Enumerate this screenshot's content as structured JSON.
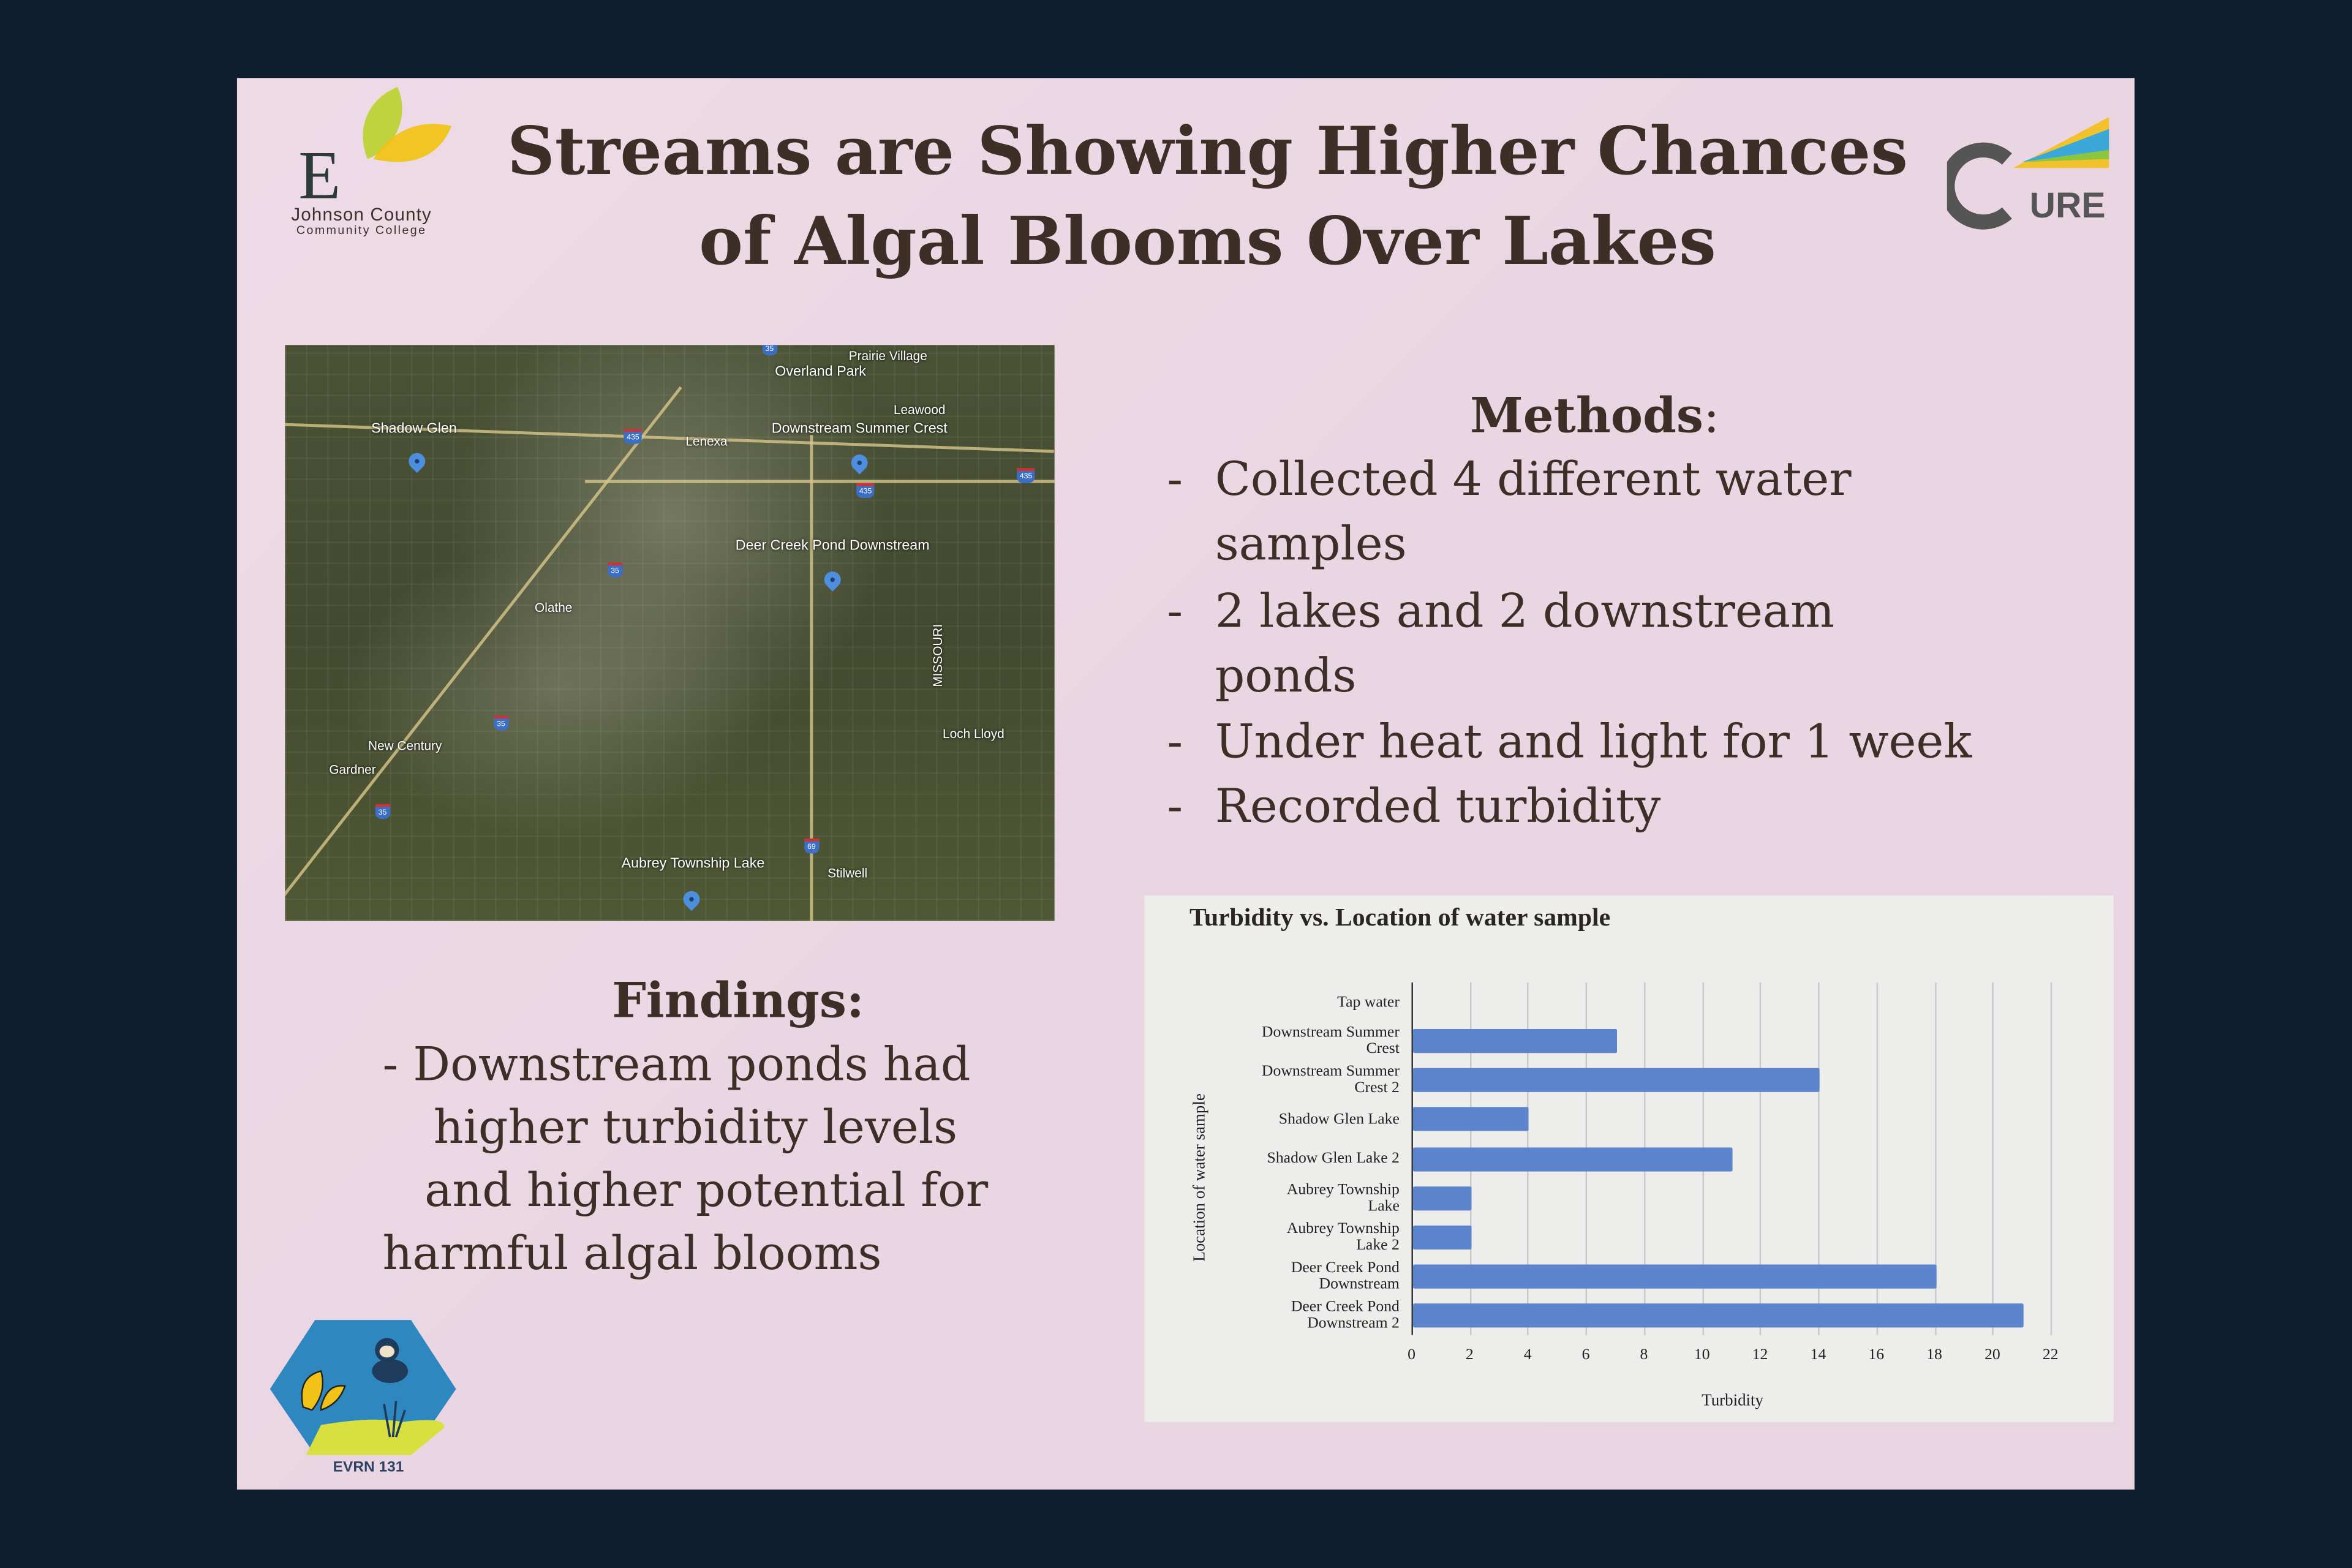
{
  "poster": {
    "title_lines": [
      "Streams are Showing Higher Chances",
      "of Algal Blooms Over Lakes"
    ],
    "logos": {
      "college": "Johnson County Community College",
      "college_line1": "Johnson County",
      "college_line2": "Community College",
      "cure": "URE",
      "course": "EVRN 131"
    },
    "methods": {
      "heading": "Methods",
      "colon": ":",
      "lines": [
        {
          "bullet": "-",
          "text": "Collected 4 different water"
        },
        {
          "bullet": "",
          "text": "samples"
        },
        {
          "bullet": "-",
          "text": "2 lakes and 2 downstream"
        },
        {
          "bullet": "",
          "text": "ponds"
        },
        {
          "bullet": "-",
          "text": "Under heat and light for 1 week"
        },
        {
          "bullet": "-",
          "text": "Recorded turbidity"
        }
      ]
    },
    "findings": {
      "heading": "Findings:",
      "lines": [
        "-  Downstream ponds had",
        "higher turbidity levels",
        "and higher potential for",
        "harmful algal blooms"
      ]
    },
    "map": {
      "labels": [
        "Prairie Village",
        "Overland Park",
        "Leawood",
        "Shadow Glen",
        "Lenexa",
        "Downstream Summer Crest",
        "Deer Creek Pond Downstream",
        "Olathe",
        "MISSOURI",
        "Loch Lloyd",
        "New Century",
        "Gardner",
        "Aubrey Township Lake",
        "Stilwell"
      ],
      "highways": [
        "35",
        "35",
        "35",
        "35",
        "435",
        "435",
        "435",
        "69"
      ],
      "pin_color": "#4d8fdc"
    }
  },
  "colors": {
    "background": "#0d1e2f",
    "poster": "#ecd8e4",
    "bar": "#5b84cc",
    "text": "#3b2f27"
  },
  "chart_data": {
    "type": "bar",
    "orientation": "horizontal",
    "title": "Turbidity vs. Location of water sample",
    "xlabel": "Turbidity",
    "ylabel": "Location of water sample",
    "categories": [
      [
        "Tap water"
      ],
      [
        "Downstream Summer",
        "Crest"
      ],
      [
        "Downstream Summer",
        "Crest 2"
      ],
      [
        "Shadow Glen Lake"
      ],
      [
        "Shadow Glen Lake 2"
      ],
      [
        "Aubrey Township",
        "Lake"
      ],
      [
        "Aubrey Township",
        "Lake 2"
      ],
      [
        "Deer Creek Pond",
        "Downstream"
      ],
      [
        "Deer Creek Pond",
        "Downstream 2"
      ]
    ],
    "values": [
      0,
      7,
      14,
      4,
      11,
      2,
      2,
      18,
      21
    ],
    "xlim": [
      0,
      22
    ],
    "xticks": [
      "0",
      "2",
      "4",
      "6",
      "8",
      "10",
      "12",
      "14",
      "16",
      "18",
      "20",
      "22"
    ],
    "grid": true,
    "legend": "none"
  }
}
